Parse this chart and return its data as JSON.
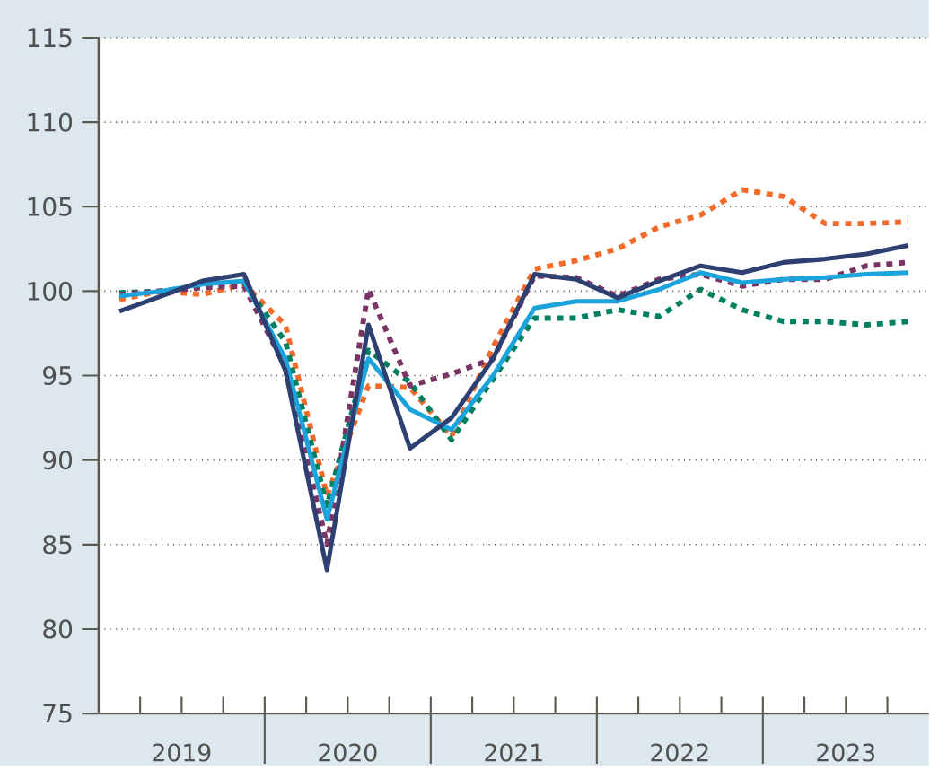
{
  "chart_data": {
    "type": "line",
    "x": [
      2019.125,
      2019.375,
      2019.625,
      2019.875,
      2020.125,
      2020.375,
      2020.625,
      2020.875,
      2021.125,
      2021.375,
      2021.625,
      2021.875,
      2022.125,
      2022.375,
      2022.625,
      2022.875,
      2023.125,
      2023.375,
      2023.625,
      2023.875
    ],
    "series": [
      {
        "color": "#f26b2a",
        "line_style": "dotted",
        "values": [
          99.5,
          100.0,
          99.8,
          100.4,
          98.0,
          87.9,
          94.4,
          94.3,
          91.4,
          96.7,
          101.3,
          101.8,
          102.5,
          103.8,
          104.5,
          106.0,
          105.6,
          104.0,
          104.0,
          104.1
        ]
      },
      {
        "color": "#008060",
        "line_style": "dotted",
        "values": [
          99.9,
          100.0,
          100.3,
          100.5,
          97.0,
          87.3,
          96.5,
          94.6,
          91.2,
          94.8,
          98.4,
          98.4,
          98.9,
          98.5,
          100.1,
          98.9,
          98.2,
          98.2,
          98.0,
          98.2
        ]
      },
      {
        "color": "#7b3565",
        "line_style": "dotted",
        "values": [
          99.8,
          100.0,
          100.2,
          100.3,
          95.5,
          85.0,
          100.1,
          94.4,
          95.1,
          96.0,
          100.9,
          100.8,
          99.7,
          100.7,
          101.0,
          100.3,
          100.7,
          100.7,
          101.5,
          101.7
        ]
      },
      {
        "color": "#1ba3dc",
        "line_style": "solid",
        "values": [
          99.7,
          100.0,
          100.4,
          100.6,
          96.0,
          86.5,
          96.0,
          93.0,
          91.8,
          95.0,
          99.0,
          99.4,
          99.4,
          100.1,
          101.1,
          100.5,
          100.7,
          100.8,
          101.0,
          101.1
        ]
      },
      {
        "color": "#2e3f72",
        "line_style": "solid",
        "values": [
          98.8,
          99.7,
          100.6,
          101.0,
          95.3,
          83.5,
          98.0,
          90.7,
          92.5,
          96.0,
          101.0,
          100.7,
          99.6,
          100.6,
          101.5,
          101.1,
          101.7,
          101.9,
          102.2,
          102.7
        ]
      }
    ],
    "xlim": [
      2019,
      2024
    ],
    "xticks": [
      {
        "value": 2019.25,
        "label": null
      },
      {
        "value": 2019.5,
        "label": "2019"
      },
      {
        "value": 2019.75,
        "label": null
      },
      {
        "value": 2020,
        "label": null
      },
      {
        "value": 2020.25,
        "label": null
      },
      {
        "value": 2020.5,
        "label": "2020"
      },
      {
        "value": 2020.75,
        "label": null
      },
      {
        "value": 2021,
        "label": null
      },
      {
        "value": 2021.25,
        "label": null
      },
      {
        "value": 2021.5,
        "label": "2021"
      },
      {
        "value": 2021.75,
        "label": null
      },
      {
        "value": 2022,
        "label": null
      },
      {
        "value": 2022.25,
        "label": null
      },
      {
        "value": 2022.5,
        "label": "2022"
      },
      {
        "value": 2022.75,
        "label": null
      },
      {
        "value": 2023,
        "label": null
      },
      {
        "value": 2023.25,
        "label": null
      },
      {
        "value": 2023.5,
        "label": "2023"
      },
      {
        "value": 2023.75,
        "label": null
      }
    ],
    "ylim": [
      75,
      115
    ],
    "yticks": [
      75,
      80,
      85,
      90,
      95,
      100,
      105,
      110,
      115
    ],
    "grid": "y"
  }
}
